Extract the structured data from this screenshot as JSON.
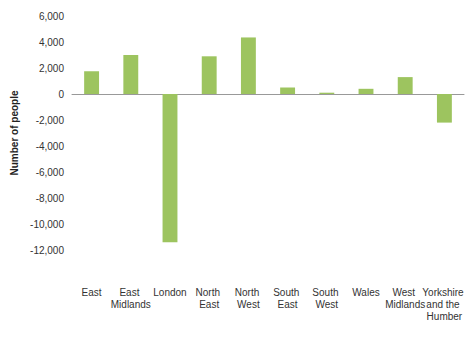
{
  "chart_data": {
    "type": "bar",
    "y_label": "Number of people",
    "categories": [
      "East",
      "East Midlands",
      "London",
      "North East",
      "North West",
      "South East",
      "South West",
      "Wales",
      "West Midlands",
      "Yorkshire and the Humber"
    ],
    "values": [
      1750,
      3000,
      -11400,
      2900,
      4350,
      500,
      100,
      400,
      1300,
      -2200
    ],
    "color": "#9dc45f",
    "ylim": [
      -12000,
      6000
    ],
    "yticks": [
      {
        "value": -12000,
        "label": "-12,000"
      },
      {
        "value": -10000,
        "label": "-10,000"
      },
      {
        "value": -8000,
        "label": "-8,000"
      },
      {
        "value": -6000,
        "label": "-6,000"
      },
      {
        "value": -4000,
        "label": "-4,000"
      },
      {
        "value": -2000,
        "label": "-2,000"
      },
      0,
      {
        "value": 2000,
        "label": "2,000"
      },
      {
        "value": 4000,
        "label": "4,000"
      },
      {
        "value": 6000,
        "label": "6,000"
      }
    ],
    "grid": false
  }
}
